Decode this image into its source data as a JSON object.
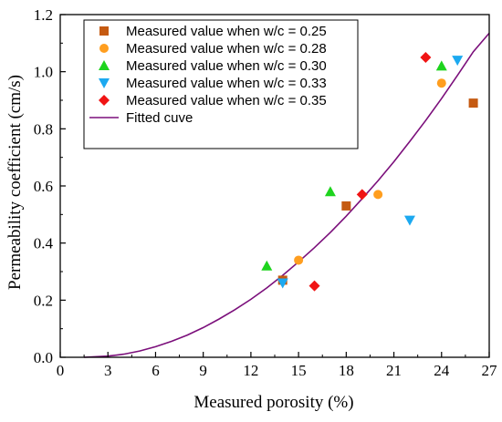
{
  "chart_data": {
    "type": "scatter",
    "xlabel": "Measured porosity (%)",
    "ylabel": "Permeability coefficient  (cm/s)",
    "xlim": [
      0,
      27
    ],
    "ylim": [
      0,
      1.2
    ],
    "x_ticks": [
      "0",
      "3",
      "6",
      "9",
      "12",
      "15",
      "18",
      "21",
      "24",
      "27"
    ],
    "y_ticks": [
      "0.0",
      "0.2",
      "0.4",
      "0.6",
      "0.8",
      "1.0",
      "1.2"
    ],
    "grid": false,
    "legend_position": "top-left",
    "series": [
      {
        "name": "Measured value when w/c = 0.25",
        "marker": "square",
        "color": "#C55A11",
        "points": [
          [
            14,
            0.27
          ],
          [
            18,
            0.53
          ],
          [
            26,
            0.89
          ]
        ]
      },
      {
        "name": "Measured value when w/c = 0.28",
        "marker": "circle",
        "color": "#FF9E1F",
        "points": [
          [
            15,
            0.34
          ],
          [
            20,
            0.57
          ],
          [
            24,
            0.96
          ]
        ]
      },
      {
        "name": "Measured value when w/c = 0.30",
        "marker": "triangle-up",
        "color": "#1ED41E",
        "points": [
          [
            13,
            0.32
          ],
          [
            17,
            0.58
          ],
          [
            24,
            1.02
          ]
        ]
      },
      {
        "name": "Measured value when w/c = 0.33",
        "marker": "triangle-down",
        "color": "#1CA9F0",
        "points": [
          [
            14,
            0.26
          ],
          [
            22,
            0.48
          ],
          [
            25,
            1.04
          ]
        ]
      },
      {
        "name": "Measured value when w/c = 0.35",
        "marker": "diamond",
        "color": "#F01414",
        "points": [
          [
            16,
            0.25
          ],
          [
            19,
            0.57
          ],
          [
            23,
            1.05
          ]
        ]
      }
    ],
    "fitted_curve": {
      "name": "Fitted cuve",
      "color": "#7B0F7B",
      "x": [
        1.5,
        3,
        4,
        5,
        6,
        7,
        8,
        9,
        10,
        11,
        12,
        13,
        14,
        15,
        16,
        17,
        18,
        19,
        20,
        21,
        22,
        23,
        24,
        25,
        26,
        27
      ],
      "y": [
        0.0,
        0.004,
        0.011,
        0.022,
        0.037,
        0.056,
        0.078,
        0.104,
        0.134,
        0.167,
        0.203,
        0.243,
        0.287,
        0.334,
        0.384,
        0.437,
        0.494,
        0.555,
        0.618,
        0.685,
        0.756,
        0.829,
        0.906,
        0.987,
        1.07,
        1.135
      ]
    }
  }
}
